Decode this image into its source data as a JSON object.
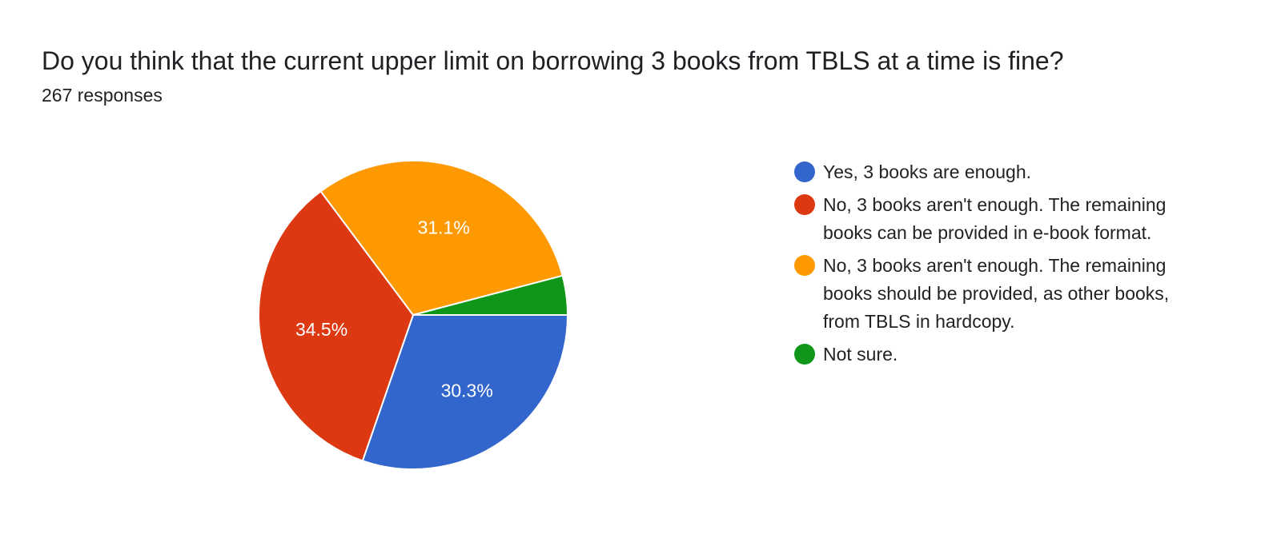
{
  "header": {
    "title": "Do you think that the current upper limit on borrowing 3 books from TBLS at a time is fine?",
    "responses": "267 responses"
  },
  "chart_data": {
    "type": "pie",
    "title": "Do you think that the current upper limit on borrowing 3 books from TBLS at a time is fine?",
    "legend_position": "right",
    "series": [
      {
        "name": "Yes, 3 books are enough.",
        "value": 30.3,
        "label": "30.3%",
        "color": "#3366cc"
      },
      {
        "name": "No, 3 books aren't enough. The remaining books can be provided in e-book format.",
        "value": 34.5,
        "label": "34.5%",
        "color": "#dc3912"
      },
      {
        "name": "No, 3 books aren't enough. The remaining books should be provided, as other books, from TBLS in hardcopy.",
        "value": 31.1,
        "label": "31.1%",
        "color": "#ff9900"
      },
      {
        "name": "Not sure.",
        "value": 4.1,
        "label": "",
        "color": "#109618"
      }
    ]
  }
}
